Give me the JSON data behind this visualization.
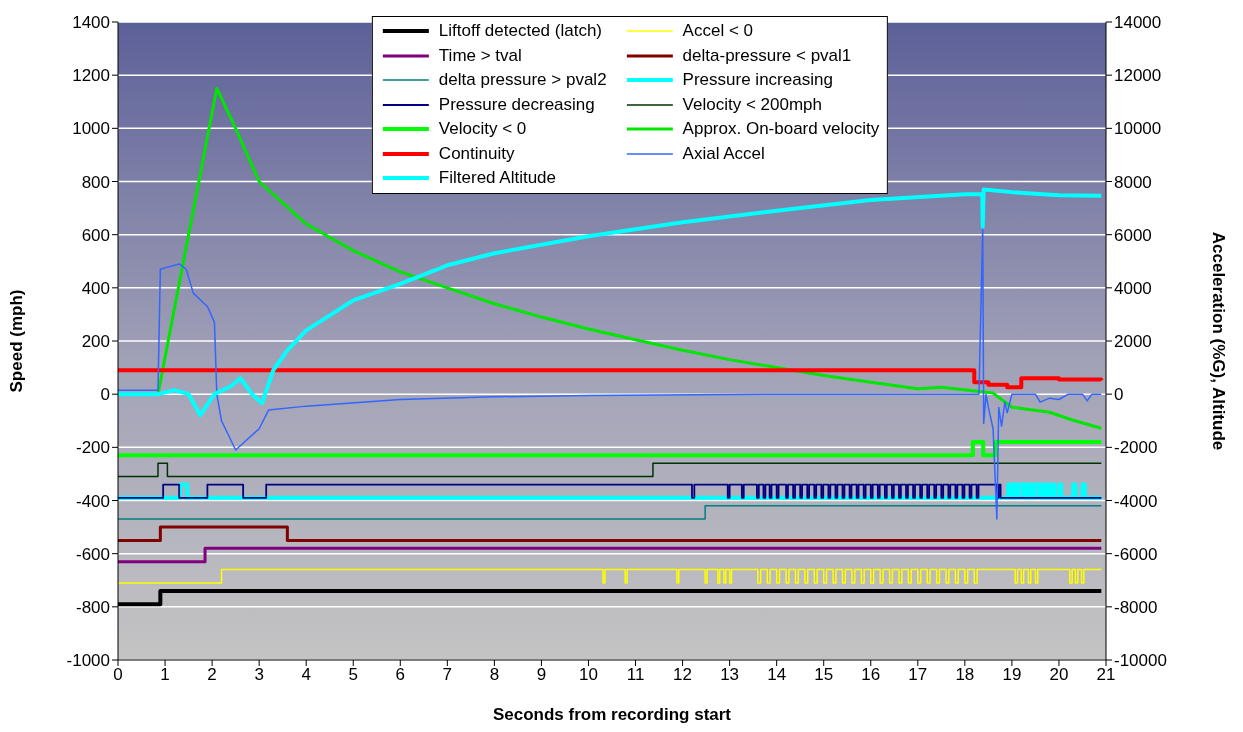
{
  "chart_data": {
    "type": "line",
    "xlabel": "Seconds from recording start",
    "ylabel": "Speed (mph)",
    "y2label": "Acceleration (%G), Altitude",
    "xlim": [
      0,
      21
    ],
    "xticks": [
      0,
      1,
      2,
      3,
      4,
      5,
      6,
      7,
      8,
      9,
      10,
      11,
      12,
      13,
      14,
      15,
      16,
      17,
      18,
      19,
      20,
      21
    ],
    "ylim": [
      -1000,
      1400
    ],
    "yticks": [
      -1000,
      -800,
      -600,
      -400,
      -200,
      0,
      200,
      400,
      600,
      800,
      1000,
      1200,
      1400
    ],
    "y2lim": [
      -10000,
      14000
    ],
    "y2ticks": [
      -10000,
      -8000,
      -6000,
      -4000,
      -2000,
      0,
      2000,
      4000,
      6000,
      8000,
      10000,
      12000,
      14000
    ],
    "grid": "y",
    "legend": "top",
    "marker": "none",
    "line_style": "solid",
    "series": [
      {
        "name": "Liftoff detected (latch)",
        "type": "step",
        "color": "#000000",
        "x": [
          0,
          0.9,
          20.9
        ],
        "values": [
          -790,
          -740,
          -740
        ]
      },
      {
        "name": "Accel < 0",
        "type": "step",
        "color": "#ffff00",
        "x": [
          0,
          2.2,
          10.31,
          10.35,
          10.78,
          10.82,
          11.88,
          11.92,
          12.48,
          12.52,
          12.75,
          12.79,
          12.88,
          12.92,
          13.0,
          13.04,
          13.6,
          13.66,
          13.8,
          13.86,
          14.0,
          14.06,
          14.2,
          14.26,
          14.4,
          14.46,
          14.6,
          14.66,
          14.8,
          14.86,
          15.0,
          15.06,
          15.2,
          15.26,
          15.4,
          15.46,
          15.6,
          15.66,
          15.8,
          15.86,
          16.0,
          16.06,
          16.2,
          16.26,
          16.4,
          16.46,
          16.6,
          16.66,
          16.8,
          16.86,
          17.0,
          17.06,
          17.2,
          17.26,
          17.4,
          17.46,
          17.6,
          17.66,
          17.8,
          17.86,
          18.0,
          18.06,
          18.2,
          18.26,
          19.07,
          19.12,
          19.2,
          19.25,
          19.35,
          19.4,
          19.5,
          19.55,
          20.23,
          20.28,
          20.35,
          20.4,
          20.48,
          20.53,
          20.9
        ],
        "values": [
          -710,
          -660,
          -710,
          -660,
          -710,
          -660,
          -710,
          -660,
          -710,
          -660,
          -710,
          -660,
          -710,
          -660,
          -710,
          -660,
          -710,
          -660,
          -710,
          -660,
          -710,
          -660,
          -710,
          -660,
          -710,
          -660,
          -710,
          -660,
          -710,
          -660,
          -710,
          -660,
          -710,
          -660,
          -710,
          -660,
          -710,
          -660,
          -710,
          -660,
          -710,
          -660,
          -710,
          -660,
          -710,
          -660,
          -710,
          -660,
          -710,
          -660,
          -710,
          -660,
          -710,
          -660,
          -710,
          -660,
          -710,
          -660,
          -710,
          -660,
          -710,
          -660,
          -710,
          -660,
          -710,
          -660,
          -710,
          -660,
          -710,
          -660,
          -710,
          -660,
          -710,
          -660,
          -710,
          -660,
          -710,
          -660,
          -660
        ]
      },
      {
        "name": "Time > tval",
        "type": "step",
        "color": "#800080",
        "x": [
          0,
          1.85,
          20.9
        ],
        "values": [
          -630,
          -580,
          -580
        ]
      },
      {
        "name": "delta-pressure < pval1",
        "type": "step",
        "color": "#800000",
        "x": [
          0,
          0.9,
          3.6,
          20.9
        ],
        "values": [
          -550,
          -500,
          -550,
          -550
        ]
      },
      {
        "name": "delta pressure > pval2",
        "type": "step",
        "color": "#008080",
        "x": [
          0,
          12.48,
          20.9
        ],
        "values": [
          -470,
          -420,
          -420
        ]
      },
      {
        "name": "Pressure increasing",
        "type": "step",
        "color": "#00ffff",
        "x": [
          0,
          1.32,
          1.47,
          18.92,
          19.0,
          19.05,
          19.1,
          19.15,
          19.25,
          19.3,
          19.35,
          19.4,
          19.45,
          19.5,
          19.6,
          19.65,
          19.7,
          19.75,
          19.8,
          19.85,
          19.9,
          20.0,
          20.05,
          20.3,
          20.35,
          20.5,
          20.55,
          20.9
        ],
        "values": [
          -390,
          -340,
          -390,
          -340,
          -390,
          -340,
          -390,
          -340,
          -390,
          -340,
          -390,
          -340,
          -390,
          -340,
          -390,
          -340,
          -390,
          -340,
          -390,
          -340,
          -390,
          -340,
          -390,
          -340,
          -390,
          -340,
          -390,
          -390
        ]
      },
      {
        "name": "Pressure decreasing",
        "type": "step",
        "color": "#000080",
        "x": [
          0,
          0.96,
          1.3,
          1.9,
          2.66,
          3.15,
          12.2,
          12.25,
          12.96,
          13.0,
          13.26,
          13.3,
          13.58,
          13.62,
          13.72,
          13.76,
          13.85,
          13.89,
          14.0,
          14.04,
          14.2,
          14.24,
          14.35,
          14.39,
          14.5,
          14.54,
          14.65,
          14.69,
          14.8,
          14.84,
          14.95,
          14.99,
          15.1,
          15.14,
          15.25,
          15.29,
          15.4,
          15.44,
          15.55,
          15.59,
          15.7,
          15.74,
          15.85,
          15.89,
          16.0,
          16.04,
          16.15,
          16.19,
          16.3,
          16.34,
          16.45,
          16.49,
          16.6,
          16.64,
          16.75,
          16.79,
          16.9,
          16.94,
          17.05,
          17.09,
          17.2,
          17.24,
          17.35,
          17.39,
          17.5,
          17.54,
          17.65,
          17.69,
          17.8,
          17.84,
          17.95,
          17.99,
          18.1,
          18.14,
          18.25,
          18.29,
          18.68,
          18.72,
          18.76,
          20.9
        ],
        "values": [
          -390,
          -340,
          -390,
          -340,
          -390,
          -340,
          -390,
          -340,
          -390,
          -340,
          -390,
          -340,
          -390,
          -340,
          -390,
          -340,
          -390,
          -340,
          -390,
          -340,
          -390,
          -340,
          -390,
          -340,
          -390,
          -340,
          -390,
          -340,
          -390,
          -340,
          -390,
          -340,
          -390,
          -340,
          -390,
          -340,
          -390,
          -340,
          -390,
          -340,
          -390,
          -340,
          -390,
          -340,
          -390,
          -340,
          -390,
          -340,
          -390,
          -340,
          -390,
          -340,
          -390,
          -340,
          -390,
          -340,
          -390,
          -340,
          -390,
          -340,
          -390,
          -340,
          -390,
          -340,
          -390,
          -340,
          -390,
          -340,
          -390,
          -340,
          -390,
          -340,
          -390,
          -340,
          -390,
          -340,
          -390,
          -340,
          -390,
          -390
        ]
      },
      {
        "name": "Velocity < 200mph",
        "type": "step",
        "color": "#003300",
        "x": [
          0,
          0.85,
          1.05,
          11.37,
          20.9
        ],
        "values": [
          -310,
          -260,
          -310,
          -260,
          -260
        ]
      },
      {
        "name": "Velocity < 0",
        "type": "step",
        "color": "#00ff00",
        "x": [
          0,
          18.17,
          18.39,
          18.64,
          20.9
        ],
        "values": [
          -230,
          -180,
          -230,
          -180,
          -180
        ]
      },
      {
        "name": "Approx. On-board velocity",
        "type": "line",
        "color": "#00e600",
        "x": [
          0,
          0.85,
          1.5,
          2.1,
          2.5,
          3,
          4,
          5,
          6,
          7,
          8,
          9,
          10,
          11,
          12,
          13,
          14,
          15,
          16,
          17,
          17.5,
          18.6,
          19,
          19.8,
          20.3,
          20.9
        ],
        "values": [
          0,
          0,
          600,
          1150,
          1000,
          800,
          640,
          540,
          460,
          400,
          340,
          290,
          245,
          205,
          165,
          130,
          100,
          70,
          45,
          20,
          26,
          4,
          -49,
          -68,
          -98,
          -128
        ]
      },
      {
        "name": "Continuity",
        "type": "step",
        "color": "#ff0000",
        "x": [
          0,
          18.2,
          18.5,
          18.9,
          19.2,
          20.0,
          20.9
        ],
        "values": [
          90,
          45,
          35,
          26,
          60,
          55,
          52
        ]
      },
      {
        "name": "Axial Accel",
        "type": "line",
        "axis": "y2",
        "color": "#3366ff",
        "x": [
          0,
          0.85,
          0.9,
          1.0,
          1.3,
          1.45,
          1.6,
          1.9,
          2.05,
          2.1,
          2.2,
          2.5,
          3.0,
          3.2,
          4,
          6,
          8,
          10,
          14,
          18,
          18.3,
          18.38,
          18.4,
          18.45,
          18.5,
          18.6,
          18.68,
          18.72,
          18.78,
          18.85,
          18.9,
          19.0,
          19.5,
          19.6,
          19.8,
          20.0,
          20.2,
          20.5,
          20.6,
          20.7,
          20.9
        ],
        "values": [
          150,
          150,
          4700,
          4750,
          4900,
          4700,
          3800,
          3300,
          2700,
          0,
          -1000,
          -2100,
          -1300,
          -600,
          -450,
          -200,
          -100,
          -50,
          0,
          0,
          0,
          6300,
          -1100,
          0,
          -500,
          -1300,
          -4700,
          -500,
          -1200,
          -300,
          -700,
          0,
          0,
          -300,
          -150,
          -200,
          0,
          0,
          -250,
          0,
          0
        ]
      },
      {
        "name": "Filtered Altitude",
        "type": "line",
        "axis": "y2",
        "color": "#00ffff",
        "x": [
          0,
          0.85,
          1.2,
          1.5,
          1.75,
          2.05,
          2.4,
          2.6,
          2.85,
          3.06,
          3.3,
          3.6,
          4,
          5,
          6,
          6.8,
          7,
          8,
          10,
          12,
          14,
          16,
          18,
          18.37,
          18.38,
          18.4,
          19,
          20,
          20.9
        ],
        "values": [
          0,
          0,
          150,
          0,
          -790,
          0,
          300,
          600,
          0,
          -340,
          900,
          1650,
          2400,
          3530,
          4150,
          4700,
          4850,
          5300,
          5940,
          6470,
          6900,
          7300,
          7520,
          7520,
          6300,
          7700,
          7600,
          7480,
          7460
        ]
      }
    ]
  }
}
